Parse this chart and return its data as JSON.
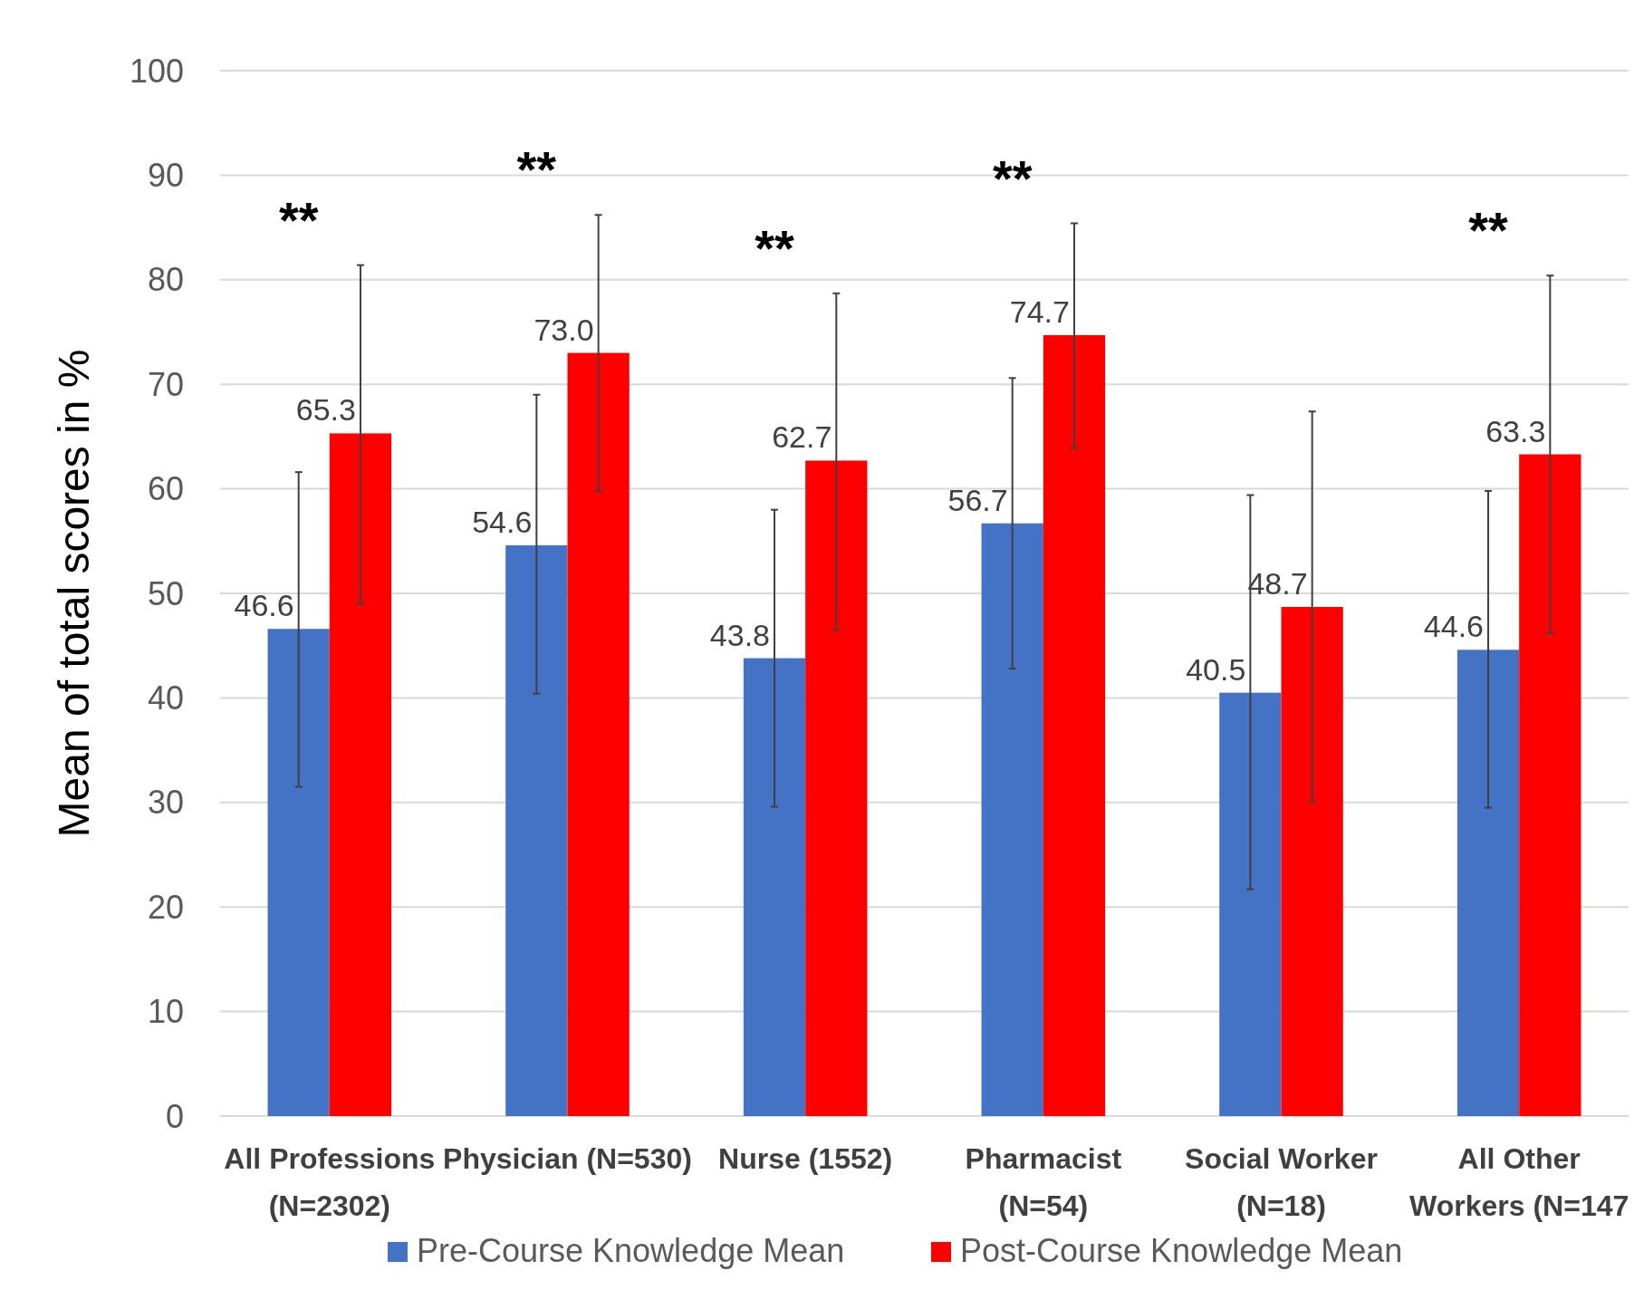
{
  "chart_data": {
    "type": "bar",
    "ylabel": "Mean of total scores in %",
    "categories": [
      "All Professions\n(N=2302)",
      "Physician (N=530)",
      "Nurse (1552)",
      "Pharmacist\n(N=54)",
      "Social Worker\n(N=18)",
      "All Other\nWorkers (N=147"
    ],
    "series": [
      {
        "name": "Pre-Course Knowledge Mean",
        "color": "#4472c4",
        "values": [
          46.6,
          54.6,
          43.8,
          56.7,
          40.5,
          44.6
        ],
        "value_labels": [
          "46.6",
          "54.6",
          "43.8",
          "56.7",
          "40.5",
          "44.6"
        ],
        "errors": [
          [
            31.5,
            61.6
          ],
          [
            40.4,
            69.0
          ],
          [
            29.6,
            58.0
          ],
          [
            42.8,
            70.6
          ],
          [
            21.7,
            59.4
          ],
          [
            29.5,
            59.8
          ]
        ]
      },
      {
        "name": "Post-Course Knowledge Mean",
        "color": "#ff0000",
        "values": [
          65.3,
          73.0,
          62.7,
          74.7,
          48.7,
          63.3
        ],
        "value_labels": [
          "65.3",
          "73.0",
          "62.7",
          "74.7",
          "48.7",
          "63.3"
        ],
        "errors": [
          [
            49.0,
            81.4
          ],
          [
            59.8,
            86.2
          ],
          [
            46.5,
            78.7
          ],
          [
            63.9,
            85.4
          ],
          [
            30.1,
            67.4
          ],
          [
            46.2,
            80.4
          ]
        ]
      }
    ],
    "ylim": [
      0,
      100
    ],
    "yticks": [
      0,
      10,
      20,
      30,
      40,
      50,
      60,
      70,
      80,
      90,
      100
    ],
    "grid": "y",
    "legend": "bottom",
    "annotations": [
      "**",
      "**",
      "**",
      "**",
      "**"
    ]
  }
}
